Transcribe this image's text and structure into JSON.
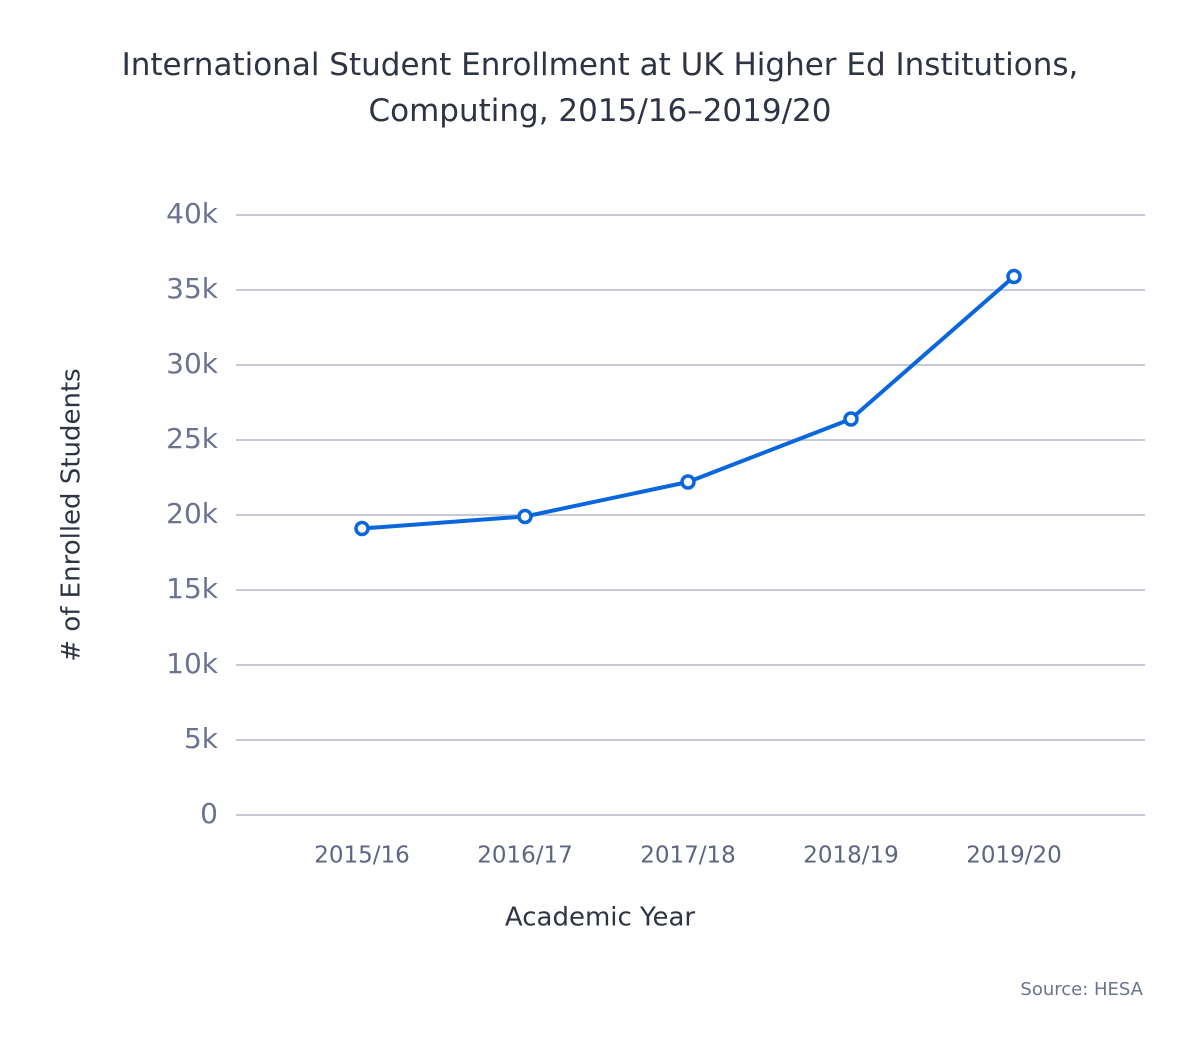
{
  "chart_data": {
    "type": "line",
    "title": "International Student Enrollment at UK Higher Ed Institutions, Computing, 2015/16–2019/20",
    "x_label": "Academic Year",
    "y_label": "# of Enrolled Students",
    "source": "Source: HESA",
    "categories": [
      "2015/16",
      "2016/17",
      "2017/18",
      "2018/19",
      "2019/20"
    ],
    "values": [
      19100,
      19900,
      22200,
      26400,
      35900
    ],
    "color": "#0a66dd",
    "ylim": [
      0,
      40000
    ],
    "yticks": [
      0,
      {
        "value": 5000,
        "label": "5k"
      },
      {
        "value": 10000,
        "label": "10k"
      },
      {
        "value": 15000,
        "label": "15k"
      },
      {
        "value": 20000,
        "label": "20k"
      },
      {
        "value": 25000,
        "label": "25k"
      },
      {
        "value": 30000,
        "label": "30k"
      },
      {
        "value": 35000,
        "label": "35k"
      },
      {
        "value": 40000,
        "label": "40k"
      }
    ],
    "grid": true
  }
}
